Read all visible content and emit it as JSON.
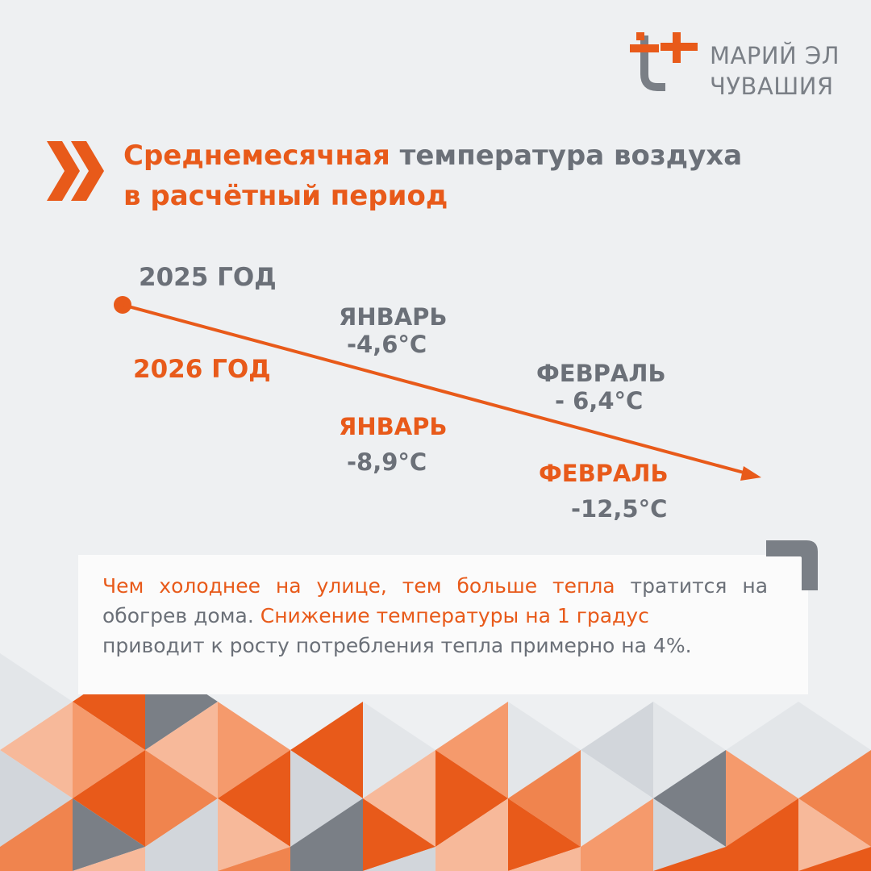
{
  "logo": {
    "line1": "МАРИЙ ЭЛ",
    "line2": "ЧУВАШИЯ",
    "icon": "t-plus-logo-icon"
  },
  "title": {
    "part1": "Среднемесячная",
    "part2": " температура воздуха",
    "part3": "в расчётный период",
    "icon": "double-chevron-right-icon"
  },
  "timeline": {
    "year_2025": "2025 ГОД",
    "year_2026": "2026 ГОД",
    "y2025": {
      "jan_label": "ЯНВАРЬ",
      "jan_temp": "-4,6°C",
      "feb_label": "ФЕВРАЛЬ",
      "feb_temp": "- 6,4°C"
    },
    "y2026": {
      "jan_label": "ЯНВАРЬ",
      "jan_temp": "-8,9°C",
      "feb_label": "ФЕВРАЛЬ",
      "feb_temp": "-12,5°C"
    },
    "arrow_icon": "arrow-right-icon"
  },
  "info": {
    "hl1": "Чем холоднее на улице, тем больше тепла",
    "t1": " тратится на обогрев дома. ",
    "hl2": "Снижение температуры на 1 градус",
    "t2": "приводит к росту потребления тепла примерно на 4%."
  },
  "colors": {
    "accent": "#e85a1a",
    "gray": "#6b7078",
    "background": "#eef0f2"
  }
}
